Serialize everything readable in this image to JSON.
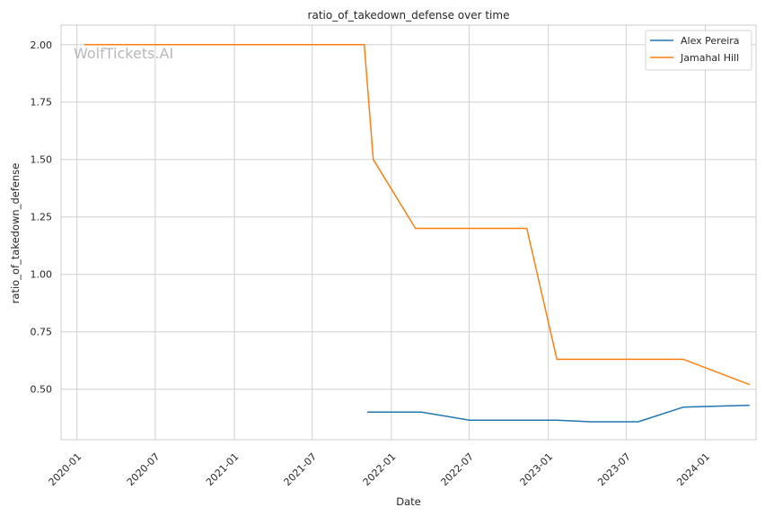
{
  "chart_data": {
    "type": "line",
    "title": "ratio_of_takedown_defense over time",
    "xlabel": "Date",
    "ylabel": "ratio_of_takedown_defense",
    "watermark": "WolfTickets.AI",
    "xlim": [
      "2019-11-25",
      "2024-04-28"
    ],
    "ylim": [
      0.28,
      2.085
    ],
    "x_ticks": [
      "2020-01-01",
      "2020-07-01",
      "2021-01-01",
      "2021-07-01",
      "2022-01-01",
      "2022-07-01",
      "2023-01-01",
      "2023-07-01",
      "2024-01-01"
    ],
    "x_tick_labels": [
      "2020-01",
      "2020-07",
      "2021-01",
      "2021-07",
      "2022-01",
      "2022-07",
      "2023-01",
      "2023-07",
      "2024-01"
    ],
    "y_ticks": [
      0.5,
      0.75,
      1.0,
      1.25,
      1.5,
      1.75,
      2.0
    ],
    "y_tick_labels": [
      "0.50",
      "0.75",
      "1.00",
      "1.25",
      "1.50",
      "1.75",
      "2.00"
    ],
    "grid": true,
    "legend_position": "top-right",
    "series": [
      {
        "name": "Alex Pereira",
        "color": "#1f77b4",
        "points": [
          {
            "x": "2021-11-06",
            "y": 0.4
          },
          {
            "x": "2022-03-12",
            "y": 0.4
          },
          {
            "x": "2022-07-02",
            "y": 0.365
          },
          {
            "x": "2022-11-12",
            "y": 0.365
          },
          {
            "x": "2023-01-21",
            "y": 0.365
          },
          {
            "x": "2023-04-08",
            "y": 0.358
          },
          {
            "x": "2023-07-29",
            "y": 0.358
          },
          {
            "x": "2023-11-11",
            "y": 0.422
          },
          {
            "x": "2024-04-13",
            "y": 0.43
          }
        ]
      },
      {
        "name": "Jamahal Hill",
        "color": "#ff7f0e",
        "points": [
          {
            "x": "2020-01-18",
            "y": 2.0
          },
          {
            "x": "2021-10-30",
            "y": 2.0
          },
          {
            "x": "2021-11-20",
            "y": 1.5
          },
          {
            "x": "2022-02-26",
            "y": 1.2
          },
          {
            "x": "2022-11-12",
            "y": 1.2
          },
          {
            "x": "2023-01-21",
            "y": 0.63
          },
          {
            "x": "2023-11-11",
            "y": 0.63
          },
          {
            "x": "2024-04-13",
            "y": 0.52
          }
        ]
      }
    ]
  }
}
